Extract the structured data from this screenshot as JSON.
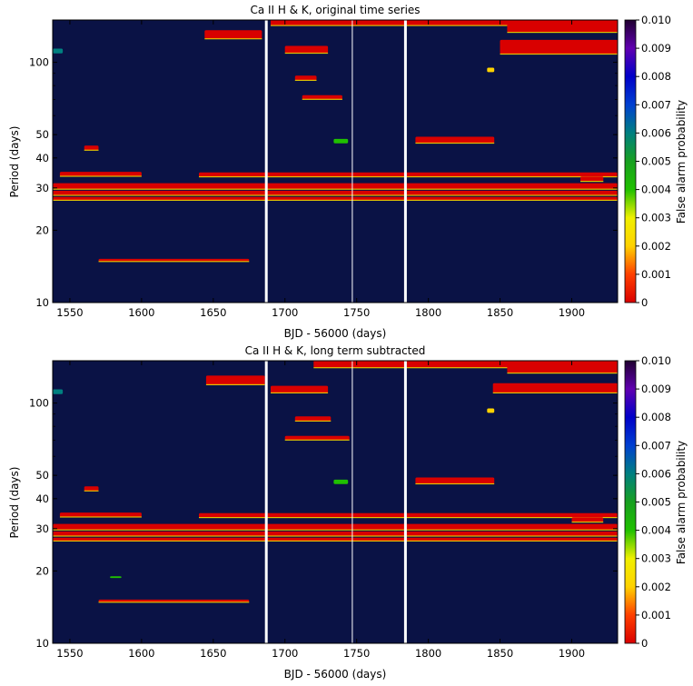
{
  "colors": {
    "background": "#0a1245",
    "strong_signal": "#d90000",
    "edge_yellow": "#f0e000",
    "edge_green": "#20c000",
    "gap_white": "#ffffff"
  },
  "chart_data": [
    {
      "type": "heatmap",
      "title": "Ca II H & K, original time series",
      "xlabel": "BJD - 56000 (days)",
      "ylabel": "Period (days)",
      "xlim": [
        1538,
        1932
      ],
      "ylim": [
        10,
        150
      ],
      "yscale": "log",
      "xticks": [
        1550,
        1600,
        1650,
        1700,
        1750,
        1800,
        1850,
        1900
      ],
      "yticks": [
        10,
        20,
        30,
        40,
        50,
        100
      ],
      "gaps": [
        {
          "x": 1687,
          "width": 3
        },
        {
          "x": 1747,
          "width": 1
        },
        {
          "x": 1784,
          "width": 3
        }
      ],
      "features": [
        {
          "x0": 1690,
          "x1": 1932,
          "p0": 142,
          "p1": 158,
          "fap": 0.0
        },
        {
          "x0": 1855,
          "x1": 1932,
          "p0": 133,
          "p1": 145,
          "fap": 0.0
        },
        {
          "x0": 1644,
          "x1": 1684,
          "p0": 125,
          "p1": 136,
          "fap": 0.0
        },
        {
          "x0": 1700,
          "x1": 1730,
          "p0": 109,
          "p1": 117,
          "fap": 0.0
        },
        {
          "x0": 1850,
          "x1": 1932,
          "p0": 108,
          "p1": 124,
          "fap": 0.0
        },
        {
          "x0": 1538,
          "x1": 1545,
          "p0": 109,
          "p1": 114,
          "fap": 0.006
        },
        {
          "x0": 1841,
          "x1": 1846,
          "p0": 91,
          "p1": 95,
          "fap": 0.002
        },
        {
          "x0": 1707,
          "x1": 1722,
          "p0": 84,
          "p1": 88,
          "fap": 0.0
        },
        {
          "x0": 1712,
          "x1": 1740,
          "p0": 70,
          "p1": 73,
          "fap": 0.0
        },
        {
          "x0": 1791,
          "x1": 1846,
          "p0": 46,
          "p1": 49,
          "fap": 0.0
        },
        {
          "x0": 1734,
          "x1": 1744,
          "p0": 46,
          "p1": 48,
          "fap": 0.004
        },
        {
          "x0": 1560,
          "x1": 1570,
          "p0": 43,
          "p1": 45,
          "fap": 0.0
        },
        {
          "x0": 1543,
          "x1": 1600,
          "p0": 33.5,
          "p1": 35.0,
          "fap": 0.0
        },
        {
          "x0": 1640,
          "x1": 1932,
          "p0": 33.3,
          "p1": 34.8,
          "fap": 0.0
        },
        {
          "x0": 1906,
          "x1": 1922,
          "p0": 31.9,
          "p1": 33.5,
          "fap": 0.0
        },
        {
          "x0": 1538,
          "x1": 1932,
          "p0": 29.6,
          "p1": 31.4,
          "fap": 0.0
        },
        {
          "x0": 1538,
          "x1": 1932,
          "p0": 27.9,
          "p1": 29.2,
          "fap": 0.0
        },
        {
          "x0": 1538,
          "x1": 1932,
          "p0": 26.6,
          "p1": 27.5,
          "fap": 0.0
        },
        {
          "x0": 1570,
          "x1": 1675,
          "p0": 14.8,
          "p1": 15.2,
          "fap": 0.0
        }
      ]
    },
    {
      "type": "heatmap",
      "title": "Ca II H & K, long term subtracted",
      "xlabel": "BJD - 56000 (days)",
      "ylabel": "Period (days)",
      "xlim": [
        1538,
        1932
      ],
      "ylim": [
        10,
        150
      ],
      "yscale": "log",
      "xticks": [
        1550,
        1600,
        1650,
        1700,
        1750,
        1800,
        1850,
        1900
      ],
      "yticks": [
        10,
        20,
        30,
        40,
        50,
        100
      ],
      "gaps": [
        {
          "x": 1687,
          "width": 3
        },
        {
          "x": 1747,
          "width": 1
        },
        {
          "x": 1784,
          "width": 3
        }
      ],
      "features": [
        {
          "x0": 1720,
          "x1": 1932,
          "p0": 140,
          "p1": 155,
          "fap": 0.0
        },
        {
          "x0": 1855,
          "x1": 1932,
          "p0": 133,
          "p1": 143,
          "fap": 0.0
        },
        {
          "x0": 1645,
          "x1": 1686,
          "p0": 119,
          "p1": 130,
          "fap": 0.0
        },
        {
          "x0": 1690,
          "x1": 1730,
          "p0": 110,
          "p1": 118,
          "fap": 0.0
        },
        {
          "x0": 1845,
          "x1": 1932,
          "p0": 110,
          "p1": 121,
          "fap": 0.0
        },
        {
          "x0": 1538,
          "x1": 1545,
          "p0": 109,
          "p1": 114,
          "fap": 0.006
        },
        {
          "x0": 1841,
          "x1": 1846,
          "p0": 91,
          "p1": 95,
          "fap": 0.002
        },
        {
          "x0": 1707,
          "x1": 1732,
          "p0": 84,
          "p1": 88,
          "fap": 0.0
        },
        {
          "x0": 1700,
          "x1": 1745,
          "p0": 70,
          "p1": 73,
          "fap": 0.0
        },
        {
          "x0": 1791,
          "x1": 1846,
          "p0": 46,
          "p1": 49,
          "fap": 0.0
        },
        {
          "x0": 1734,
          "x1": 1744,
          "p0": 46,
          "p1": 48,
          "fap": 0.004
        },
        {
          "x0": 1560,
          "x1": 1570,
          "p0": 43,
          "p1": 45,
          "fap": 0.0
        },
        {
          "x0": 1543,
          "x1": 1600,
          "p0": 33.5,
          "p1": 35.0,
          "fap": 0.0
        },
        {
          "x0": 1640,
          "x1": 1932,
          "p0": 33.3,
          "p1": 34.8,
          "fap": 0.0
        },
        {
          "x0": 1900,
          "x1": 1922,
          "p0": 31.9,
          "p1": 33.5,
          "fap": 0.0
        },
        {
          "x0": 1538,
          "x1": 1932,
          "p0": 29.6,
          "p1": 31.4,
          "fap": 0.0
        },
        {
          "x0": 1538,
          "x1": 1932,
          "p0": 27.9,
          "p1": 29.2,
          "fap": 0.0
        },
        {
          "x0": 1538,
          "x1": 1932,
          "p0": 26.6,
          "p1": 27.5,
          "fap": 0.0
        },
        {
          "x0": 1578,
          "x1": 1586,
          "p0": 18.7,
          "p1": 19.0,
          "fap": 0.004
        },
        {
          "x0": 1570,
          "x1": 1675,
          "p0": 14.8,
          "p1": 15.2,
          "fap": 0.0
        }
      ]
    }
  ],
  "colorbar": {
    "label": "False alarm probability",
    "range": [
      0,
      0.01
    ],
    "ticks": [
      "0",
      "0.001",
      "0.002",
      "0.003",
      "0.004",
      "0.005",
      "0.006",
      "0.007",
      "0.008",
      "0.009",
      "0.010"
    ],
    "stops": [
      "#d90000",
      "#ff4000",
      "#ffd200",
      "#f0f000",
      "#20c000",
      "#18a020",
      "#008080",
      "#0040d0",
      "#0000c8",
      "#6000b0",
      "#200030"
    ]
  }
}
